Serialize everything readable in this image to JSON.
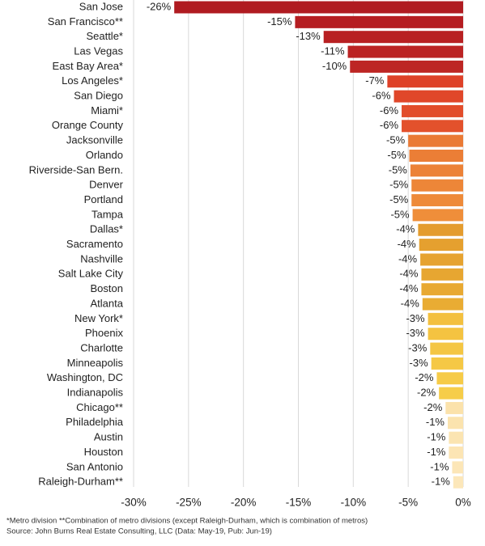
{
  "chart_data": {
    "type": "bar",
    "orientation": "horizontal",
    "categories": [
      "San Jose",
      "San Francisco**",
      "Seattle*",
      "Las Vegas",
      "East Bay Area*",
      "Los Angeles*",
      "San Diego",
      "Miami*",
      "Orange County",
      "Jacksonville",
      "Orlando",
      "Riverside-San Bern.",
      "Denver",
      "Portland",
      "Tampa",
      "Dallas*",
      "Sacramento",
      "Nashville",
      "Salt Lake City",
      "Boston",
      "Atlanta",
      "New York*",
      "Phoenix",
      "Charlotte",
      "Minneapolis",
      "Washington, DC",
      "Indianapolis",
      "Chicago**",
      "Philadelphia",
      "Austin",
      "Houston",
      "San Antonio",
      "Raleigh-Durham**"
    ],
    "values": [
      -26.3,
      -15.3,
      -12.7,
      -10.5,
      -10.3,
      -6.9,
      -6.3,
      -5.6,
      -5.6,
      -5.0,
      -4.9,
      -4.8,
      -4.7,
      -4.7,
      -4.6,
      -4.1,
      -4.0,
      -3.9,
      -3.8,
      -3.8,
      -3.7,
      -3.2,
      -3.2,
      -3.0,
      -2.9,
      -2.4,
      -2.2,
      -1.6,
      -1.4,
      -1.3,
      -1.3,
      -1.0,
      -0.9
    ],
    "value_labels": [
      "-26%",
      "-15%",
      "-13%",
      "-11%",
      "-10%",
      "-7%",
      "-6%",
      "-6%",
      "-6%",
      "-5%",
      "-5%",
      "-5%",
      "-5%",
      "-5%",
      "-5%",
      "-4%",
      "-4%",
      "-4%",
      "-4%",
      "-4%",
      "-4%",
      "-3%",
      "-3%",
      "-3%",
      "-3%",
      "-2%",
      "-2%",
      "-2%",
      "-1%",
      "-1%",
      "-1%",
      "-1%",
      "-1%"
    ],
    "colors": [
      "#b01b21",
      "#b51d21",
      "#b82022",
      "#bb2323",
      "#bd2624",
      "#de4128",
      "#e0472a",
      "#e24d2b",
      "#e3512c",
      "#ea7a35",
      "#eb7e36",
      "#ec8237",
      "#ed8638",
      "#ee8a39",
      "#ef8e3a",
      "#e49c2e",
      "#e5a02f",
      "#e6a330",
      "#e7a631",
      "#e8a932",
      "#e9ac33",
      "#f3c03f",
      "#f4c341",
      "#f4c643",
      "#f5c845",
      "#f6cb47",
      "#f6cd49",
      "#fbe2ab",
      "#fbe3ae",
      "#fbe4b1",
      "#fce5b4",
      "#fce6b7",
      "#fce7ba"
    ],
    "xlim": [
      -30,
      0
    ],
    "xticks": [
      {
        "value": -30,
        "label": "-30%"
      },
      {
        "value": -25,
        "label": "-25%"
      },
      {
        "value": -20,
        "label": "-20%"
      },
      {
        "value": -15,
        "label": "-15%"
      },
      {
        "value": -10,
        "label": "-10%"
      },
      {
        "value": -5,
        "label": "-5%"
      },
      {
        "value": 0,
        "label": "0%"
      }
    ],
    "grid": true,
    "notes": [
      "*Metro division **Combination of metro divisions (except Raleigh-Durham, which is combination of metros)",
      "Source: John Burns Real Estate Consulting, LLC (Data: May-19, Pub: Jun-19)"
    ]
  }
}
